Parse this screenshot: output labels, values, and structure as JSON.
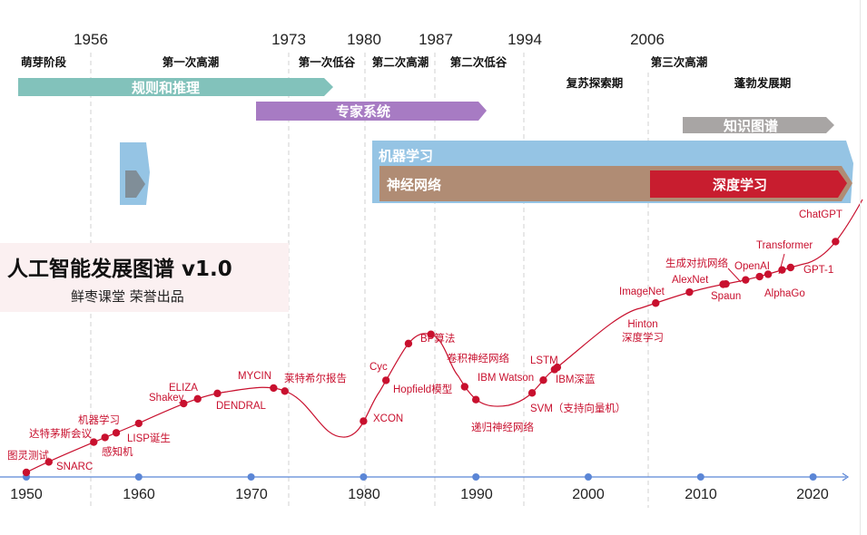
{
  "colors": {
    "rules_band": "#82c2bb",
    "expert_band": "#a77bc3",
    "knowledge_band": "#a8a5a4",
    "ml_band": "#95c4e4",
    "nn_band": "#b08c74",
    "dl_band": "#c81d2f",
    "curve": "#c8102e",
    "axis": "#5b86d6",
    "title_bg": "#fbf0f1"
  },
  "top_years": [
    "1956",
    "1973",
    "1980",
    "1987",
    "1994",
    "2006"
  ],
  "phases": [
    {
      "label": "萌芽阶段"
    },
    {
      "label": "第一次高潮"
    },
    {
      "label": "第一次低谷"
    },
    {
      "label": "第二次高潮"
    },
    {
      "label": "第二次低谷"
    },
    {
      "label": "复苏探索期"
    },
    {
      "label": "第三次高潮"
    },
    {
      "label": "蓬勃发展期"
    }
  ],
  "bands": {
    "rules": "规则和推理",
    "expert": "专家系统",
    "knowledge": "知识图谱",
    "ml": "机器学习",
    "nn": "神经网络",
    "dl": "深度学习"
  },
  "title": {
    "main": "人工智能发展图谱 v1.0",
    "sub": "鲜枣课堂 荣誉出品"
  },
  "axis_years": [
    "1950",
    "1960",
    "1970",
    "1980",
    "1990",
    "2000",
    "2010",
    "2020"
  ],
  "events": [
    {
      "label": "图灵测试",
      "year": 1950
    },
    {
      "label": "SNARC",
      "year": 1952
    },
    {
      "label": "达特茅斯会议",
      "year": 1956
    },
    {
      "label": "机器学习",
      "year": 1957
    },
    {
      "label": "感知机",
      "year": 1958
    },
    {
      "label": "LISP诞生",
      "year": 1960
    },
    {
      "label": "Shakey",
      "year": 1964
    },
    {
      "label": "ELIZA",
      "year": 1965
    },
    {
      "label": "DENDRAL",
      "year": 1967
    },
    {
      "label": "MYCIN",
      "year": 1972
    },
    {
      "label": "莱特希尔报告",
      "year": 1973
    },
    {
      "label": "XCON",
      "year": 1980
    },
    {
      "label": "Hopfield模型",
      "year": 1982
    },
    {
      "label": "Cyc",
      "year": 1984
    },
    {
      "label": "BP算法",
      "year": 1986
    },
    {
      "label": "卷积神经网络",
      "year": 1989
    },
    {
      "label": "递归神经网络",
      "year": 1990
    },
    {
      "label": "SVM（支持向量机）",
      "year": 1995
    },
    {
      "label": "IBM Watson",
      "year": 1996
    },
    {
      "label": "LSTM",
      "year": 1997
    },
    {
      "label": "IBM深蓝",
      "year": 1997
    },
    {
      "label": "Hinton\n深度学习",
      "year": 2006
    },
    {
      "label": "ImageNet",
      "year": 2009
    },
    {
      "label": "AlexNet",
      "year": 2012
    },
    {
      "label": "Spaun",
      "year": 2012
    },
    {
      "label": "生成对抗网络",
      "year": 2014
    },
    {
      "label": "OpenAI",
      "year": 2015
    },
    {
      "label": "AlphaGo",
      "year": 2016
    },
    {
      "label": "Transformer",
      "year": 2017
    },
    {
      "label": "GPT-1",
      "year": 2018
    },
    {
      "label": "ChatGPT",
      "year": 2022
    }
  ]
}
